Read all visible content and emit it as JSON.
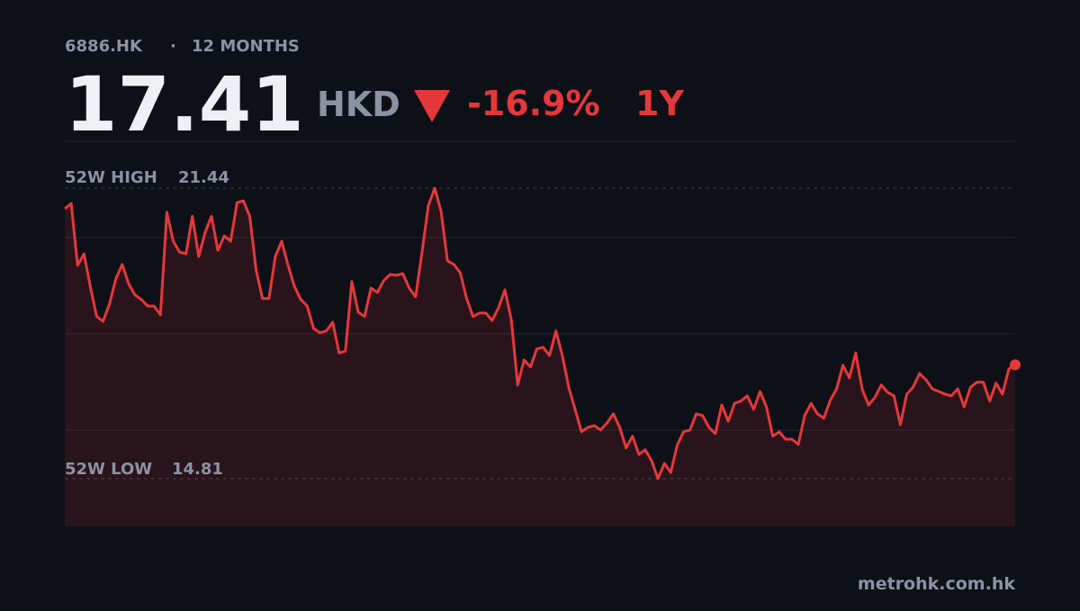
{
  "header": {
    "ticker": "6886.HK",
    "separator": "·",
    "period": "12 MONTHS",
    "price": 17.41,
    "currency": "HKD",
    "change": "-16.9%",
    "range": "1Y"
  },
  "chart_data": {
    "type": "line",
    "color": "#e5383b",
    "values": [
      20.97,
      21.09,
      19.68,
      19.94,
      19.2,
      18.51,
      18.4,
      18.79,
      19.37,
      19.7,
      19.26,
      19.0,
      18.9,
      18.75,
      18.75,
      18.55,
      20.89,
      20.23,
      19.98,
      19.94,
      20.8,
      19.88,
      20.43,
      20.8,
      20.02,
      20.35,
      20.23,
      21.11,
      21.15,
      20.8,
      19.57,
      18.92,
      18.92,
      19.88,
      20.23,
      19.68,
      19.2,
      18.9,
      18.75,
      18.24,
      18.14,
      18.18,
      18.38,
      17.68,
      17.72,
      19.31,
      18.61,
      18.51,
      19.16,
      19.06,
      19.33,
      19.47,
      19.45,
      19.49,
      19.16,
      18.96,
      19.98,
      21.05,
      21.44,
      20.91,
      19.78,
      19.7,
      19.51,
      18.92,
      18.51,
      18.59,
      18.59,
      18.42,
      18.71,
      19.12,
      18.44,
      16.95,
      17.52,
      17.36,
      17.77,
      17.81,
      17.62,
      18.18,
      17.62,
      16.9,
      16.39,
      15.88,
      15.98,
      16.02,
      15.92,
      16.08,
      16.29,
      15.98,
      15.51,
      15.78,
      15.36,
      15.47,
      15.22,
      14.81,
      15.16,
      14.95,
      15.57,
      15.88,
      15.92,
      16.29,
      16.25,
      15.98,
      15.84,
      16.49,
      16.12,
      16.53,
      16.58,
      16.7,
      16.39,
      16.8,
      16.45,
      15.78,
      15.88,
      15.71,
      15.71,
      15.59,
      16.25,
      16.53,
      16.29,
      16.19,
      16.6,
      16.86,
      17.4,
      17.11,
      17.68,
      16.86,
      16.49,
      16.66,
      16.95,
      16.78,
      16.7,
      16.04,
      16.74,
      16.9,
      17.21,
      17.07,
      16.86,
      16.8,
      16.74,
      16.7,
      16.86,
      16.45,
      16.9,
      17.01,
      17.01,
      16.58,
      16.99,
      16.74,
      17.31,
      17.41
    ],
    "high_label": "52W HIGH",
    "high": 21.44,
    "low_label": "52W LOW",
    "low": 14.81,
    "ylim": [
      13.72,
      22.51
    ]
  },
  "footer": {
    "source": "metrohk.com.hk"
  }
}
